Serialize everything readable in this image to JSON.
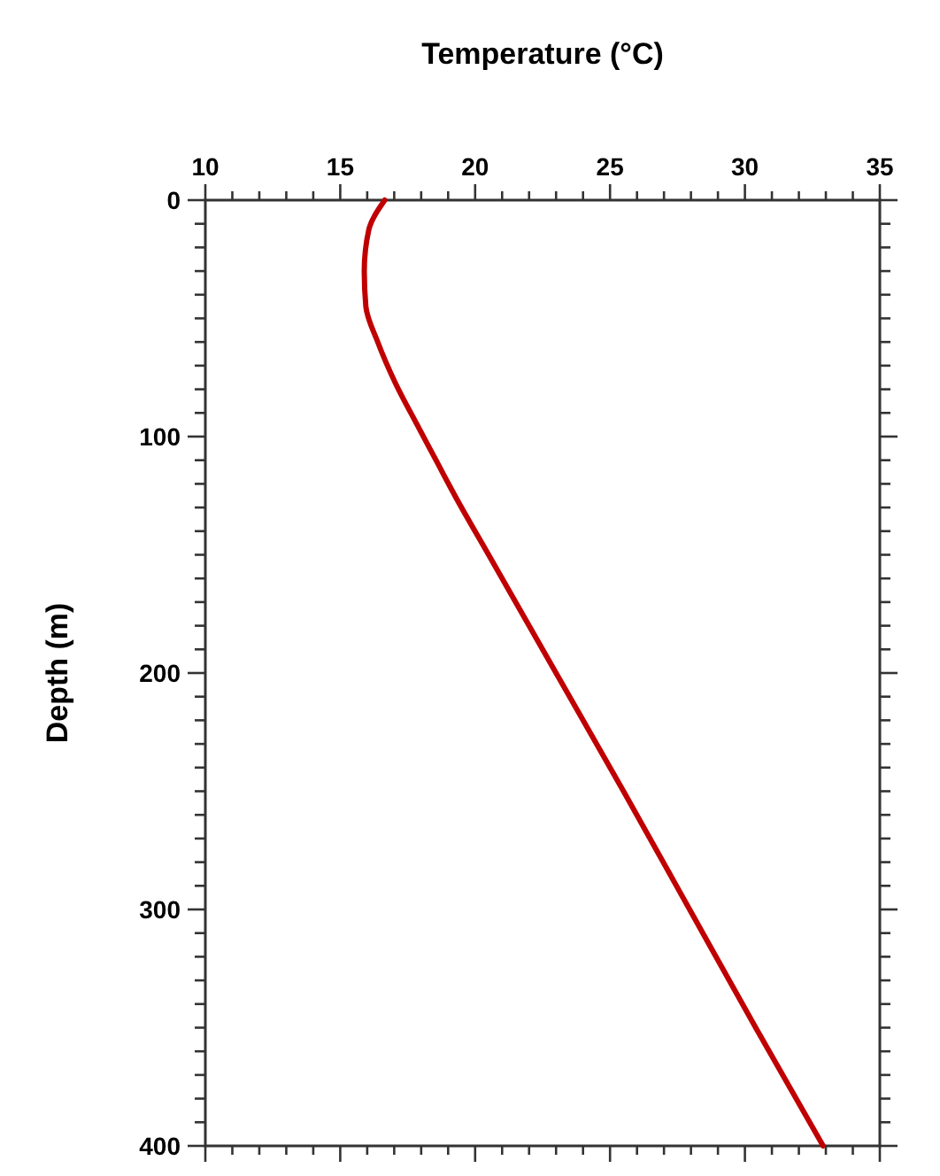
{
  "chart_data": {
    "type": "line",
    "xlabel": "Temperature (°C)",
    "ylabel": "Depth (m)",
    "xlim": [
      10,
      35
    ],
    "ylim": [
      400,
      0
    ],
    "xticks": [
      10,
      {
        "value": 11,
        "label": null
      },
      {
        "value": 12,
        "label": null
      },
      {
        "value": 13,
        "label": null
      },
      {
        "value": 14,
        "label": null
      },
      15,
      {
        "value": 16,
        "label": null
      },
      {
        "value": 17,
        "label": null
      },
      {
        "value": 18,
        "label": null
      },
      {
        "value": 19,
        "label": null
      },
      20,
      {
        "value": 21,
        "label": null
      },
      {
        "value": 22,
        "label": null
      },
      {
        "value": 23,
        "label": null
      },
      {
        "value": 24,
        "label": null
      },
      25,
      {
        "value": 26,
        "label": null
      },
      {
        "value": 27,
        "label": null
      },
      {
        "value": 28,
        "label": null
      },
      {
        "value": 29,
        "label": null
      },
      30,
      {
        "value": 31,
        "label": null
      },
      {
        "value": 32,
        "label": null
      },
      {
        "value": 33,
        "label": null
      },
      {
        "value": 34,
        "label": null
      },
      35
    ],
    "yticks": [
      0,
      {
        "value": 10,
        "label": null
      },
      {
        "value": 20,
        "label": null
      },
      {
        "value": 30,
        "label": null
      },
      {
        "value": 40,
        "label": null
      },
      {
        "value": 50,
        "label": null
      },
      {
        "value": 60,
        "label": null
      },
      {
        "value": 70,
        "label": null
      },
      {
        "value": 80,
        "label": null
      },
      {
        "value": 90,
        "label": null
      },
      100,
      {
        "value": 110,
        "label": null
      },
      {
        "value": 120,
        "label": null
      },
      {
        "value": 130,
        "label": null
      },
      {
        "value": 140,
        "label": null
      },
      {
        "value": 150,
        "label": null
      },
      {
        "value": 160,
        "label": null
      },
      {
        "value": 170,
        "label": null
      },
      {
        "value": 180,
        "label": null
      },
      {
        "value": 190,
        "label": null
      },
      200,
      {
        "value": 210,
        "label": null
      },
      {
        "value": 220,
        "label": null
      },
      {
        "value": 230,
        "label": null
      },
      {
        "value": 240,
        "label": null
      },
      {
        "value": 250,
        "label": null
      },
      {
        "value": 260,
        "label": null
      },
      {
        "value": 270,
        "label": null
      },
      {
        "value": 280,
        "label": null
      },
      {
        "value": 290,
        "label": null
      },
      300,
      {
        "value": 310,
        "label": null
      },
      {
        "value": 320,
        "label": null
      },
      {
        "value": 330,
        "label": null
      },
      {
        "value": 340,
        "label": null
      },
      {
        "value": 350,
        "label": null
      },
      {
        "value": 360,
        "label": null
      },
      {
        "value": 370,
        "label": null
      },
      {
        "value": 380,
        "label": null
      },
      {
        "value": 390,
        "label": null
      },
      400
    ],
    "series": [
      {
        "color": "#c00000",
        "x": [
          16.65,
          16.06,
          15.89,
          15.95,
          16.39,
          17.05,
          17.85,
          18.55,
          19.25,
          20.5,
          23,
          25.5,
          27.95,
          30.4,
          32.9
        ],
        "values": [
          0,
          12.5,
          30,
          45,
          60,
          77.5,
          95,
          110,
          125,
          150,
          200,
          250,
          300,
          350,
          400
        ]
      }
    ]
  }
}
